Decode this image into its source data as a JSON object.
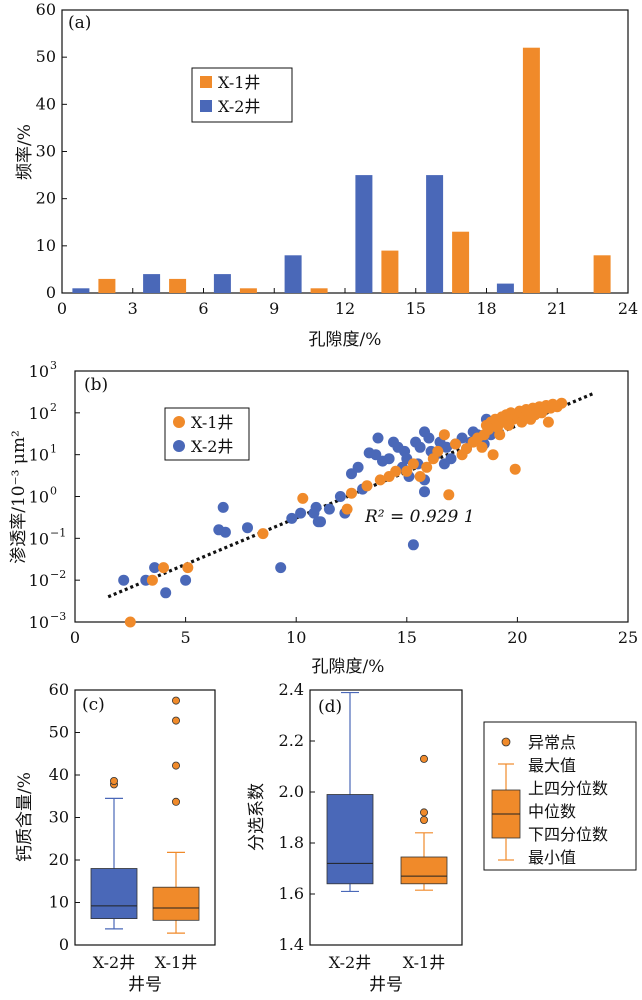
{
  "colors": {
    "x1": "#F08A2A",
    "x2": "#4A68B8",
    "trend": "#111111"
  },
  "chart_data": [
    {
      "id": "a",
      "panel_label": "(a)",
      "type": "bar",
      "xlabel": "孔隙度/%",
      "ylabel": "频率/%",
      "xlim": [
        0,
        24
      ],
      "ylim": [
        0,
        60
      ],
      "xticks": [
        0,
        3,
        6,
        9,
        12,
        15,
        18,
        21,
        24
      ],
      "yticks": [
        0,
        10,
        20,
        30,
        40,
        50,
        60
      ],
      "series": [
        {
          "name": "X-1井",
          "x": [
            1.5,
            4.5,
            7.5,
            10.5,
            13.5,
            16.5,
            19.5,
            22.5
          ],
          "values": [
            3,
            3,
            1,
            1,
            9,
            13,
            52,
            8
          ]
        },
        {
          "name": "X-2井",
          "x": [
            1.5,
            4.5,
            7.5,
            10.5,
            13.5,
            16.5,
            19.5,
            22.5
          ],
          "values": [
            1,
            4,
            4,
            8,
            25,
            25,
            2,
            0
          ]
        }
      ]
    },
    {
      "id": "b",
      "panel_label": "(b)",
      "type": "scatter",
      "xlabel": "孔隙度/%",
      "ylabel": "渗透率/10⁻³ μm²",
      "xlim": [
        0,
        25
      ],
      "ylim_log10": [
        -3,
        3
      ],
      "log_y": true,
      "xticks": [
        0,
        5,
        10,
        15,
        20,
        25
      ],
      "ytick_exponents": [
        -3,
        -2,
        -1,
        0,
        1,
        2,
        3
      ],
      "annotation": "R² = 0.929 1",
      "trendline": {
        "x": [
          1.5,
          23.5
        ],
        "y": [
          0.004,
          300
        ]
      },
      "series": [
        {
          "name": "X-1井",
          "points": [
            [
              2.5,
              0.001
            ],
            [
              3.5,
              0.01
            ],
            [
              4,
              0.02
            ],
            [
              5.1,
              0.02
            ],
            [
              8.5,
              0.13
            ],
            [
              10.3,
              0.9
            ],
            [
              12.3,
              0.5
            ],
            [
              12.5,
              1.2
            ],
            [
              13.2,
              1.8
            ],
            [
              13.8,
              2.5
            ],
            [
              14.2,
              3
            ],
            [
              14.5,
              4
            ],
            [
              15,
              4
            ],
            [
              15.3,
              6
            ],
            [
              15.6,
              3
            ],
            [
              15.9,
              5
            ],
            [
              16.2,
              8
            ],
            [
              16.4,
              12
            ],
            [
              16.7,
              30
            ],
            [
              16.9,
              1.1
            ],
            [
              17.2,
              18
            ],
            [
              17.5,
              10
            ],
            [
              17.7,
              14
            ],
            [
              18,
              20
            ],
            [
              18.2,
              25
            ],
            [
              18.4,
              15
            ],
            [
              18.5,
              30
            ],
            [
              18.6,
              50
            ],
            [
              18.7,
              40
            ],
            [
              18.8,
              60
            ],
            [
              18.9,
              10
            ],
            [
              19,
              70
            ],
            [
              19.1,
              45
            ],
            [
              19.2,
              30
            ],
            [
              19.3,
              80
            ],
            [
              19.4,
              60
            ],
            [
              19.5,
              90
            ],
            [
              19.6,
              50
            ],
            [
              19.7,
              100
            ],
            [
              19.8,
              70
            ],
            [
              19.9,
              4.5
            ],
            [
              20,
              80
            ],
            [
              20.1,
              110
            ],
            [
              20.2,
              60
            ],
            [
              20.3,
              90
            ],
            [
              20.4,
              120
            ],
            [
              20.5,
              100
            ],
            [
              20.6,
              70
            ],
            [
              20.7,
              130
            ],
            [
              20.8,
              90
            ],
            [
              20.9,
              110
            ],
            [
              21,
              140
            ],
            [
              21.1,
              100
            ],
            [
              21.2,
              120
            ],
            [
              21.3,
              150
            ],
            [
              21.4,
              60
            ],
            [
              21.5,
              130
            ],
            [
              21.6,
              160
            ],
            [
              21.8,
              140
            ],
            [
              22,
              170
            ]
          ]
        },
        {
          "name": "X-2井",
          "points": [
            [
              2.2,
              0.01
            ],
            [
              3.2,
              0.01
            ],
            [
              3.6,
              0.02
            ],
            [
              4.1,
              0.005
            ],
            [
              5,
              0.01
            ],
            [
              6.5,
              0.16
            ],
            [
              6.7,
              0.55
            ],
            [
              6.8,
              0.14
            ],
            [
              7.8,
              0.18
            ],
            [
              9.3,
              0.02
            ],
            [
              9.8,
              0.3
            ],
            [
              10.2,
              0.4
            ],
            [
              10.8,
              0.4
            ],
            [
              10.9,
              0.55
            ],
            [
              11,
              0.25
            ],
            [
              11.1,
              0.25
            ],
            [
              11.5,
              0.5
            ],
            [
              12,
              1
            ],
            [
              12.2,
              0.4
            ],
            [
              12.5,
              3.5
            ],
            [
              12.8,
              5
            ],
            [
              13,
              1.5
            ],
            [
              13.3,
              11
            ],
            [
              13.6,
              10
            ],
            [
              13.7,
              25
            ],
            [
              13.9,
              7
            ],
            [
              14.2,
              8
            ],
            [
              14.4,
              20
            ],
            [
              14.6,
              15
            ],
            [
              14.8,
              5
            ],
            [
              14.9,
              12
            ],
            [
              15,
              8
            ],
            [
              15.1,
              3
            ],
            [
              15.3,
              0.07
            ],
            [
              15.4,
              20
            ],
            [
              15.5,
              6
            ],
            [
              15.6,
              15
            ],
            [
              15.8,
              35
            ],
            [
              15.8,
              2.5
            ],
            [
              15.8,
              1.3
            ],
            [
              16,
              25
            ],
            [
              16.1,
              12
            ],
            [
              16.3,
              10
            ],
            [
              16.5,
              20
            ],
            [
              16.7,
              6
            ],
            [
              16.8,
              15
            ],
            [
              17,
              8
            ],
            [
              17.2,
              18
            ],
            [
              17.5,
              25
            ],
            [
              17.7,
              14
            ],
            [
              17.9,
              20
            ],
            [
              18,
              35
            ],
            [
              18.2,
              30
            ],
            [
              18.5,
              18
            ],
            [
              18.6,
              70
            ],
            [
              18.8,
              30
            ]
          ]
        }
      ]
    },
    {
      "id": "c",
      "panel_label": "(c)",
      "type": "box",
      "xlabel": "井号",
      "ylabel": "钙质含量/%",
      "ylim": [
        0,
        60
      ],
      "yticks": [
        0,
        10,
        20,
        30,
        40,
        50,
        60
      ],
      "categories": [
        "X-2井",
        "X-1井"
      ],
      "boxes": [
        {
          "name": "X-2井",
          "min": 3.8,
          "q1": 6.2,
          "median": 9.2,
          "q3": 18,
          "max": 34.5,
          "outliers": [
            37.8,
            38.6
          ]
        },
        {
          "name": "X-1井",
          "min": 2.8,
          "q1": 5.8,
          "median": 8.7,
          "q3": 13.6,
          "max": 21.8,
          "outliers": [
            33.7,
            42.2,
            52.8,
            57.5
          ]
        }
      ]
    },
    {
      "id": "d",
      "panel_label": "(d)",
      "type": "box",
      "xlabel": "井号",
      "ylabel": "分选系数",
      "ylim": [
        1.4,
        2.4
      ],
      "yticks": [
        1.4,
        1.6,
        1.8,
        2.0,
        2.2,
        2.4
      ],
      "categories": [
        "X-2井",
        "X-1井"
      ],
      "boxes": [
        {
          "name": "X-2井",
          "min": 1.61,
          "q1": 1.64,
          "median": 1.72,
          "q3": 1.99,
          "max": 2.39,
          "outliers": []
        },
        {
          "name": "X-1井",
          "min": 1.615,
          "q1": 1.64,
          "median": 1.67,
          "q3": 1.745,
          "max": 1.84,
          "outliers": [
            1.89,
            1.92,
            2.13
          ]
        }
      ]
    }
  ],
  "box_legend": [
    "异常点",
    "最大值",
    "上四分位数",
    "中位数",
    "下四分位数",
    "最小值"
  ]
}
